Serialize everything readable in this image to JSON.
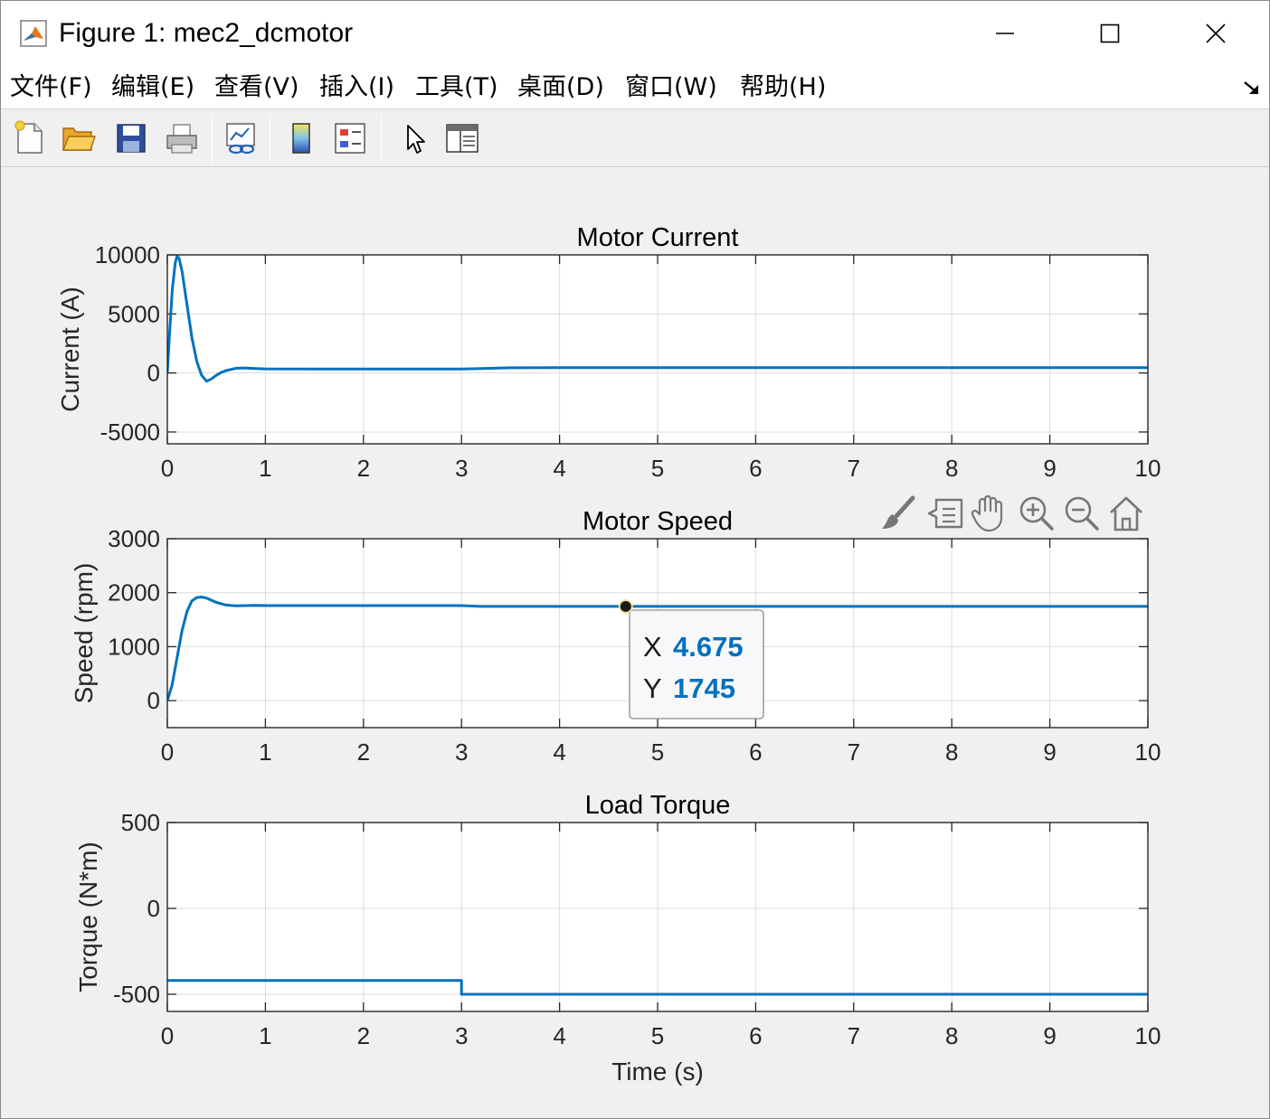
{
  "window": {
    "title": "Figure 1: mec2_dcmotor",
    "controls": {
      "minimize": "minimize-icon",
      "maximize": "maximize-icon",
      "close": "close-icon"
    }
  },
  "menu": [
    {
      "label": "文件(F)"
    },
    {
      "label": "编辑(E)"
    },
    {
      "label": "查看(V)"
    },
    {
      "label": "插入(I)"
    },
    {
      "label": "工具(T)"
    },
    {
      "label": "桌面(D)"
    },
    {
      "label": "窗口(W)"
    },
    {
      "label": "帮助(H)"
    }
  ],
  "toolbar": [
    {
      "icon": "new-figure-icon"
    },
    {
      "icon": "open-file-icon"
    },
    {
      "icon": "save-icon"
    },
    {
      "icon": "print-icon"
    },
    {
      "icon": "link-plot-icon"
    },
    {
      "icon": "colorbar-icon"
    },
    {
      "icon": "legend-icon"
    },
    {
      "icon": "edit-plot-icon"
    },
    {
      "icon": "property-inspector-icon"
    }
  ],
  "axes_toolbar": [
    "brush-icon",
    "datatip-icon",
    "pan-icon",
    "zoom-in-icon",
    "zoom-out-icon",
    "home-icon"
  ],
  "datatip": {
    "x_label": "X",
    "x_value": "4.675",
    "y_label": "Y",
    "y_value": "1745"
  },
  "colors": {
    "line": "#0072BD",
    "grid": "#dcdcdc",
    "datatip_value": "#0072BD"
  },
  "chart_data": [
    {
      "type": "line",
      "title": "Motor Current",
      "xlabel": "",
      "ylabel": "Current (A)",
      "xlim": [
        0,
        10
      ],
      "ylim": [
        -6000,
        10000
      ],
      "xticks": [
        "0",
        "1",
        "2",
        "3",
        "4",
        "5",
        "6",
        "7",
        "8",
        "9",
        "10"
      ],
      "yticks": [
        "10000",
        "5000",
        "0",
        "-5000"
      ],
      "grid": true,
      "series": [
        {
          "x": [
            0,
            0.02,
            0.05,
            0.08,
            0.1,
            0.12,
            0.15,
            0.2,
            0.25,
            0.3,
            0.35,
            0.4,
            0.45,
            0.5,
            0.55,
            0.6,
            0.7,
            0.8,
            0.9,
            1.0,
            1.5,
            2.0,
            2.5,
            3.0,
            3.2,
            3.5,
            4,
            5,
            6,
            7,
            8,
            9,
            10
          ],
          "y": [
            0,
            3000,
            7000,
            9300,
            9900,
            9700,
            8600,
            5800,
            3000,
            1000,
            -200,
            -700,
            -500,
            -200,
            50,
            200,
            400,
            420,
            380,
            350,
            340,
            340,
            340,
            340,
            380,
            440,
            450,
            450,
            450,
            450,
            450,
            450,
            450
          ]
        }
      ]
    },
    {
      "type": "line",
      "title": "Motor Speed",
      "xlabel": "",
      "ylabel": "Speed (rpm)",
      "xlim": [
        0,
        10
      ],
      "ylim": [
        -500,
        3000
      ],
      "xticks": [
        "0",
        "1",
        "2",
        "3",
        "4",
        "5",
        "6",
        "7",
        "8",
        "9",
        "10"
      ],
      "yticks": [
        "3000",
        "2000",
        "1000",
        "0"
      ],
      "grid": true,
      "series": [
        {
          "x": [
            0,
            0.05,
            0.1,
            0.15,
            0.2,
            0.25,
            0.3,
            0.35,
            0.4,
            0.45,
            0.5,
            0.6,
            0.7,
            0.8,
            0.9,
            1.0,
            2.0,
            3.0,
            3.2,
            4,
            4.675,
            5,
            6,
            7,
            8,
            9,
            10
          ],
          "y": [
            0,
            300,
            800,
            1300,
            1650,
            1850,
            1910,
            1920,
            1900,
            1860,
            1820,
            1770,
            1755,
            1760,
            1765,
            1760,
            1760,
            1760,
            1745,
            1745,
            1745,
            1745,
            1745,
            1745,
            1745,
            1745,
            1745
          ]
        }
      ]
    },
    {
      "type": "line",
      "title": "Load Torque",
      "xlabel": "Time (s)",
      "ylabel": "Torque (N*m)",
      "xlim": [
        0,
        10
      ],
      "ylim": [
        -600,
        500
      ],
      "xticks": [
        "0",
        "1",
        "2",
        "3",
        "4",
        "5",
        "6",
        "7",
        "8",
        "9",
        "10"
      ],
      "yticks": [
        "500",
        "0",
        "-500"
      ],
      "grid": true,
      "series": [
        {
          "x": [
            0,
            3,
            3,
            10
          ],
          "y": [
            -420,
            -420,
            -500,
            -500
          ]
        }
      ]
    }
  ]
}
